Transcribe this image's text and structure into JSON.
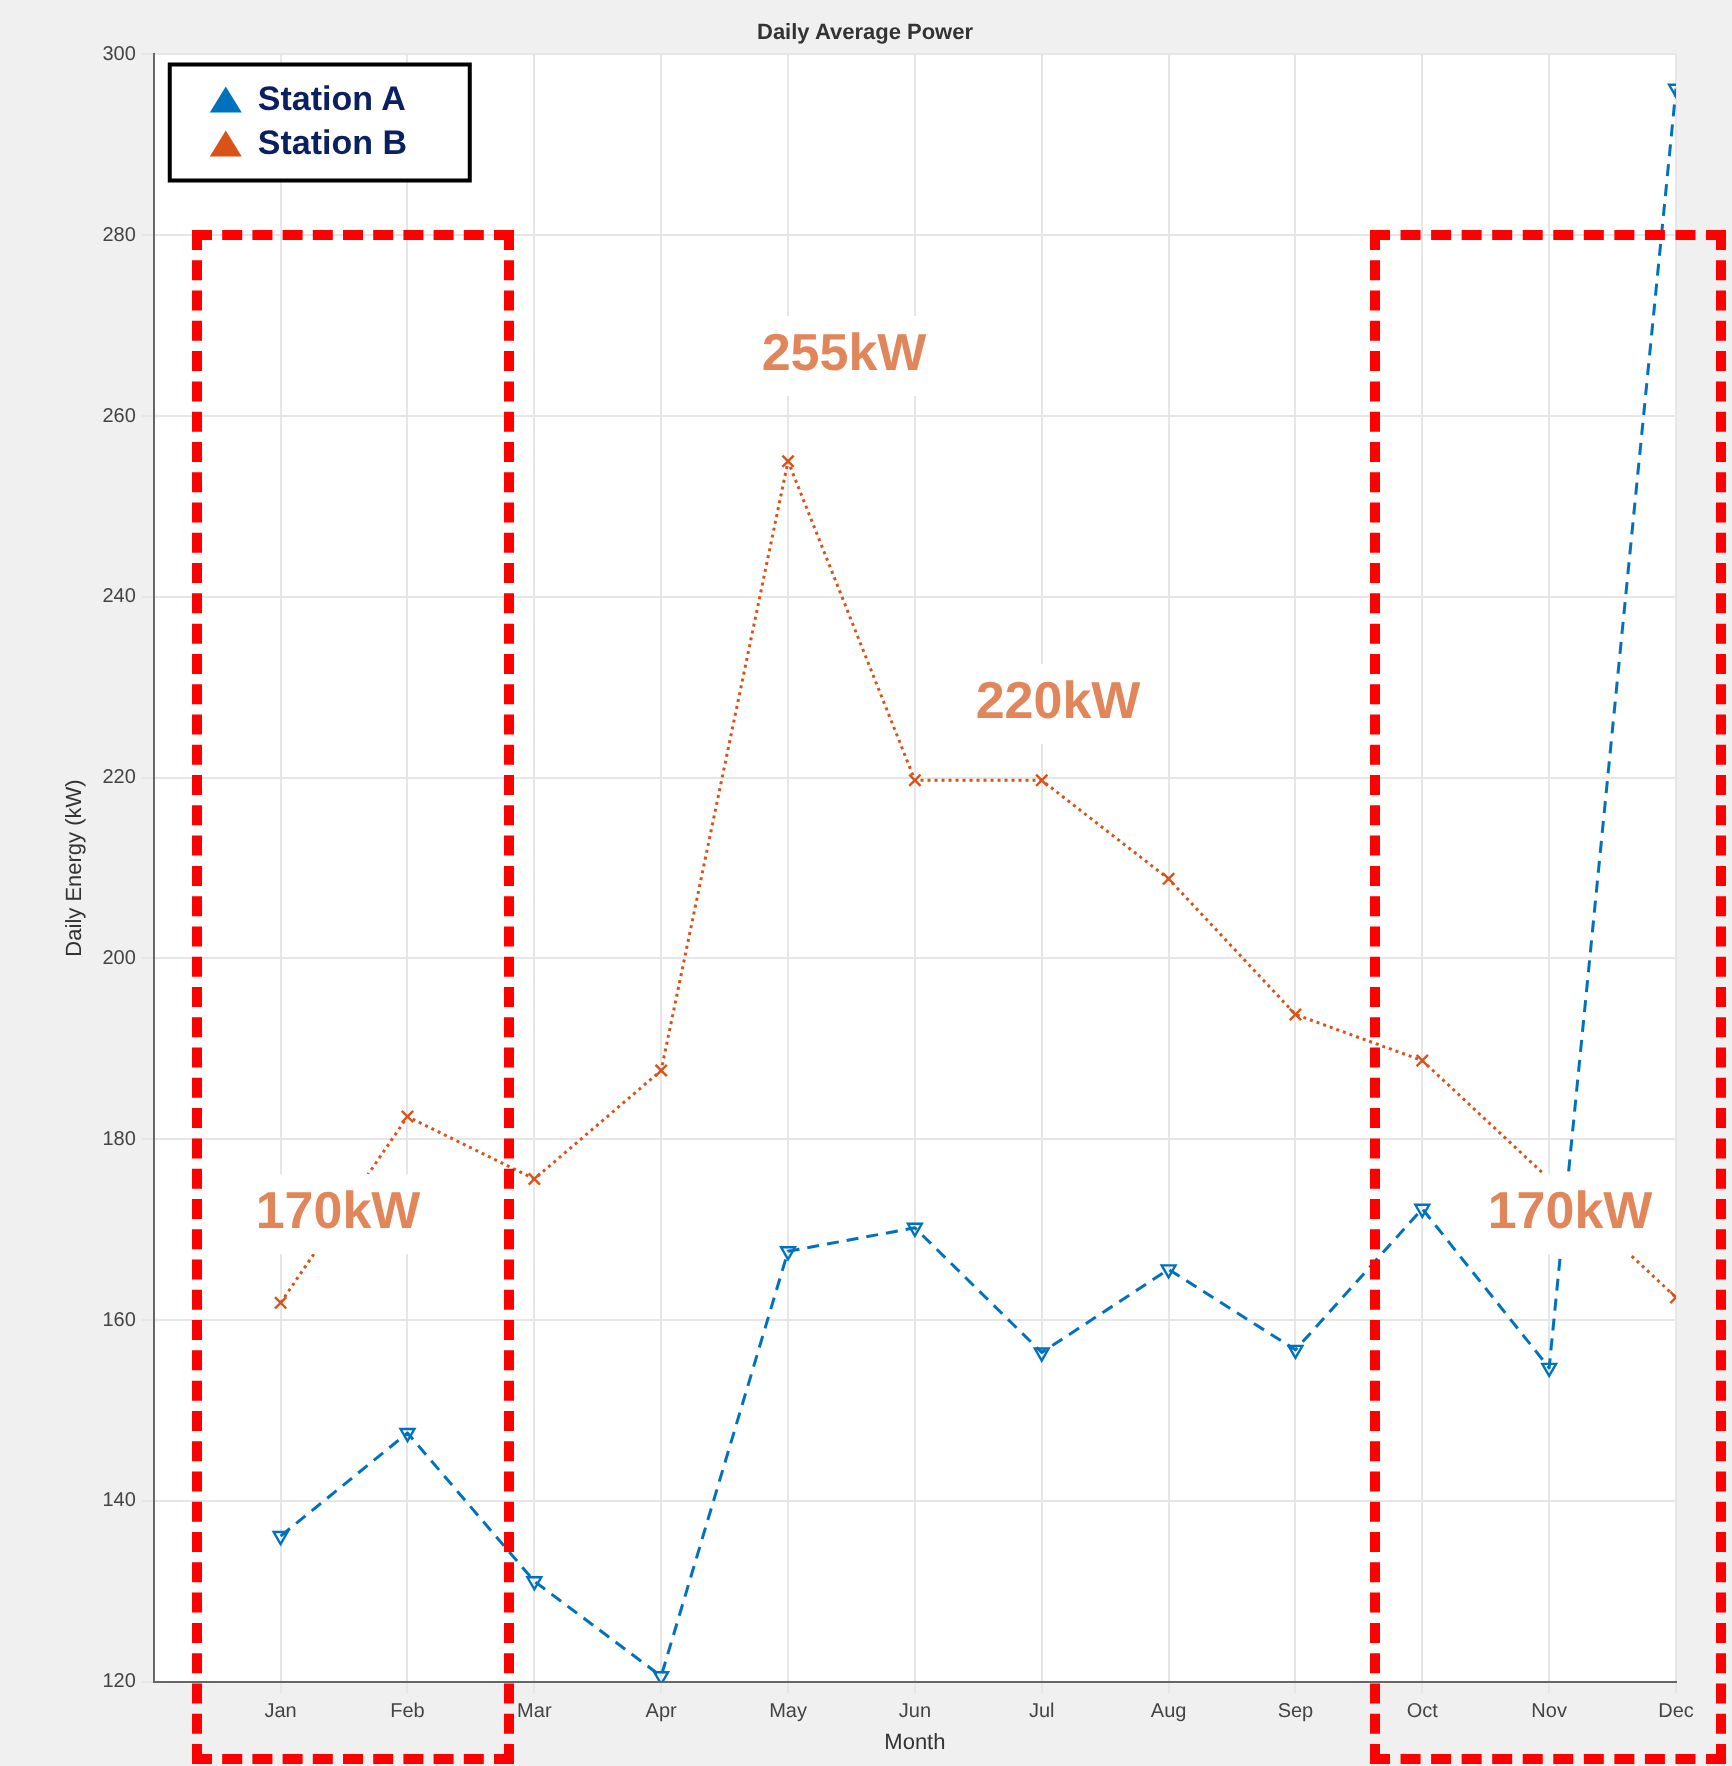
{
  "chart_data": {
    "type": "line",
    "title": "Daily Average Power",
    "xlabel": "Month",
    "ylabel": "Daily Energy (kW)",
    "categories": [
      "Jan",
      "Feb",
      "Mar",
      "Apr",
      "May",
      "Jun",
      "Jul",
      "Aug",
      "Sep",
      "Oct",
      "Nov",
      "Dec"
    ],
    "series": [
      {
        "name": "Station A",
        "color": "#0072bd",
        "marker": "triangle",
        "line_style": "dashed",
        "values": [
          136.1,
          147.5,
          131.1,
          120.6,
          167.6,
          170.2,
          156.4,
          165.6,
          156.7,
          172.3,
          154.7,
          296.2
        ]
      },
      {
        "name": "Station B",
        "color": "#d95319",
        "marker": "cross",
        "line_style": "dotted",
        "values": [
          161.9,
          182.5,
          175.6,
          187.6,
          255,
          219.7,
          219.7,
          208.8,
          193.8,
          188.7,
          null,
          162.5
        ]
      }
    ],
    "ylim": [
      120,
      300
    ],
    "yticks": [
      120,
      140,
      160,
      180,
      200,
      220,
      240,
      260,
      280,
      300
    ],
    "grid": true,
    "legend": "top left",
    "annotations": [
      "255kW",
      "220kW",
      "170kW",
      "170kW"
    ]
  }
}
